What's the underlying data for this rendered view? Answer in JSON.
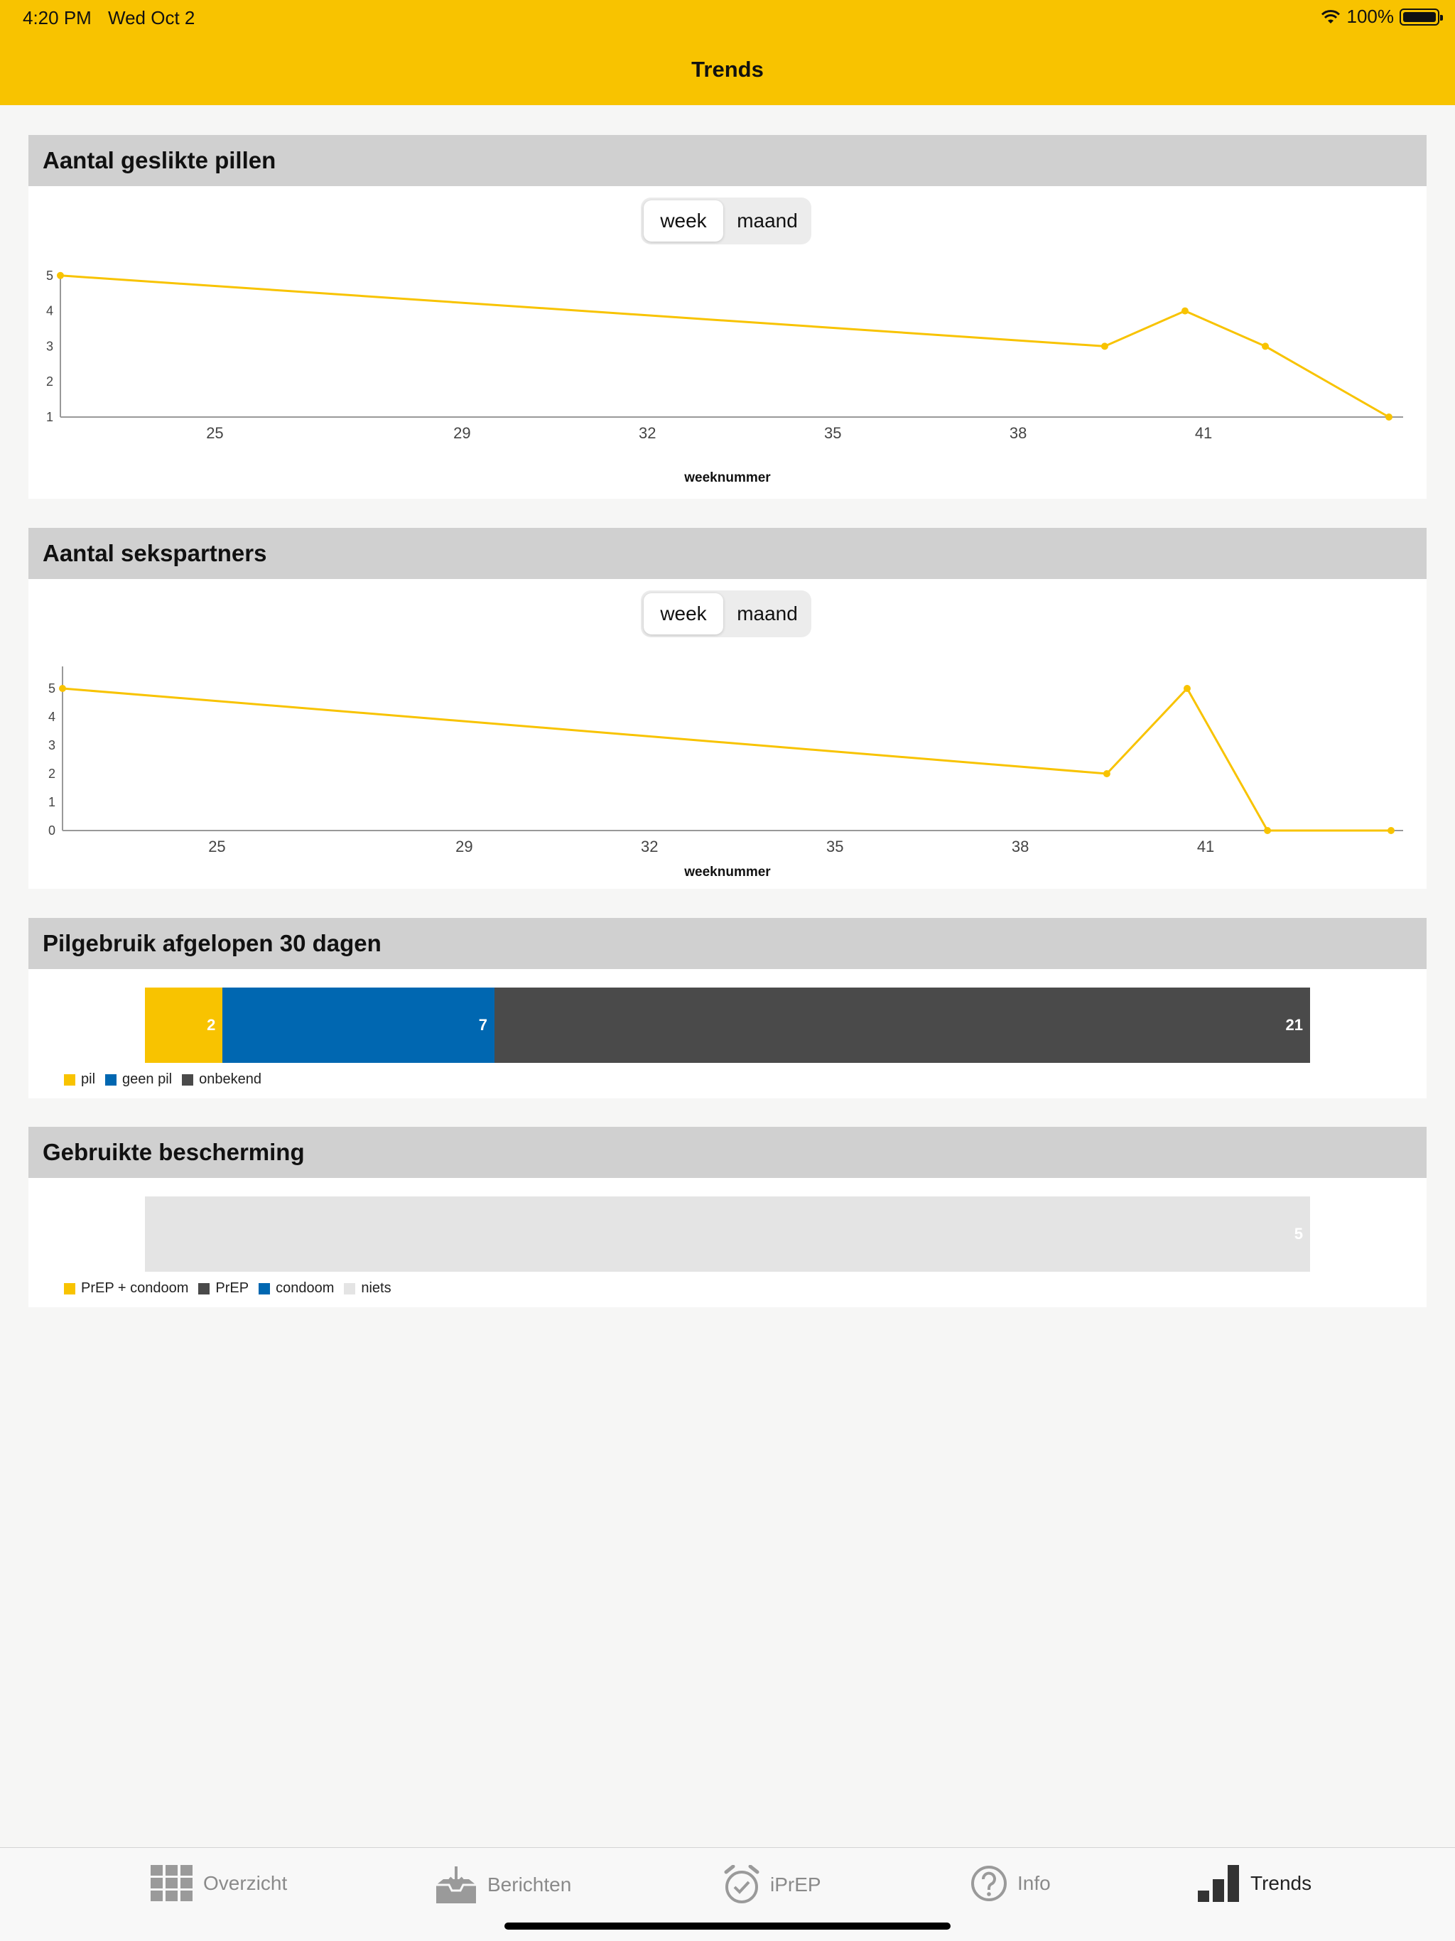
{
  "status": {
    "time": "4:20 PM",
    "date": "Wed Oct 2",
    "battery": "100%"
  },
  "nav": {
    "title": "Trends"
  },
  "colors": {
    "accent": "#f8c300",
    "blue": "#0067b1",
    "dark": "#4a4a4a",
    "light": "#e4e4e4"
  },
  "pills_card": {
    "title": "Aantal geslikte pillen",
    "segment": {
      "active": "week",
      "inactive": "maand"
    },
    "xlabel": "weeknummer",
    "yticks": [
      "5",
      "4",
      "3",
      "2",
      "1"
    ],
    "xticks": [
      "25",
      "29",
      "32",
      "35",
      "38",
      "41"
    ]
  },
  "partners_card": {
    "title": "Aantal sekspartners",
    "segment": {
      "active": "week",
      "inactive": "maand"
    },
    "xlabel": "weeknummer",
    "yticks": [
      "5",
      "4",
      "3",
      "2",
      "1",
      "0"
    ],
    "xticks": [
      "25",
      "29",
      "32",
      "35",
      "38",
      "41"
    ]
  },
  "usage_card": {
    "title": "Pilgebruik afgelopen 30 dagen",
    "legend": [
      "pil",
      "geen pil",
      "onbekend"
    ]
  },
  "protection_card": {
    "title": "Gebruikte bescherming",
    "legend": [
      "PrEP + condoom",
      "PrEP",
      "condoom",
      "niets"
    ]
  },
  "chart_data": [
    {
      "type": "line",
      "x": [
        22.5,
        39.4,
        40.7,
        42.0,
        44.0
      ],
      "values": [
        5,
        3,
        4,
        3,
        1
      ],
      "xlabel": "weeknummer",
      "ylabel": "",
      "ylim": [
        1,
        5
      ]
    },
    {
      "type": "line",
      "x": [
        22.5,
        39.4,
        40.7,
        42.0,
        44.0
      ],
      "values": [
        5,
        2,
        5,
        0,
        0
      ],
      "xlabel": "weeknummer",
      "ylabel": "",
      "ylim": [
        0,
        5
      ]
    },
    {
      "type": "bar",
      "orientation": "horizontal-stacked",
      "series": [
        {
          "name": "pil",
          "values": [
            2
          ]
        },
        {
          "name": "geen pil",
          "values": [
            7
          ]
        },
        {
          "name": "onbekend",
          "values": [
            21
          ]
        }
      ]
    },
    {
      "type": "bar",
      "orientation": "horizontal-stacked",
      "series": [
        {
          "name": "PrEP + condoom",
          "values": [
            0
          ]
        },
        {
          "name": "PrEP",
          "values": [
            0
          ]
        },
        {
          "name": "condoom",
          "values": [
            0
          ]
        },
        {
          "name": "niets",
          "values": [
            5
          ]
        }
      ]
    }
  ],
  "tabs": [
    {
      "label": "Overzicht",
      "icon": "grid-icon"
    },
    {
      "label": "Berichten",
      "icon": "inbox-icon"
    },
    {
      "label": "iPrEP",
      "icon": "alarm-icon"
    },
    {
      "label": "Info",
      "icon": "question-icon"
    },
    {
      "label": "Trends",
      "icon": "bar-chart-icon"
    }
  ]
}
